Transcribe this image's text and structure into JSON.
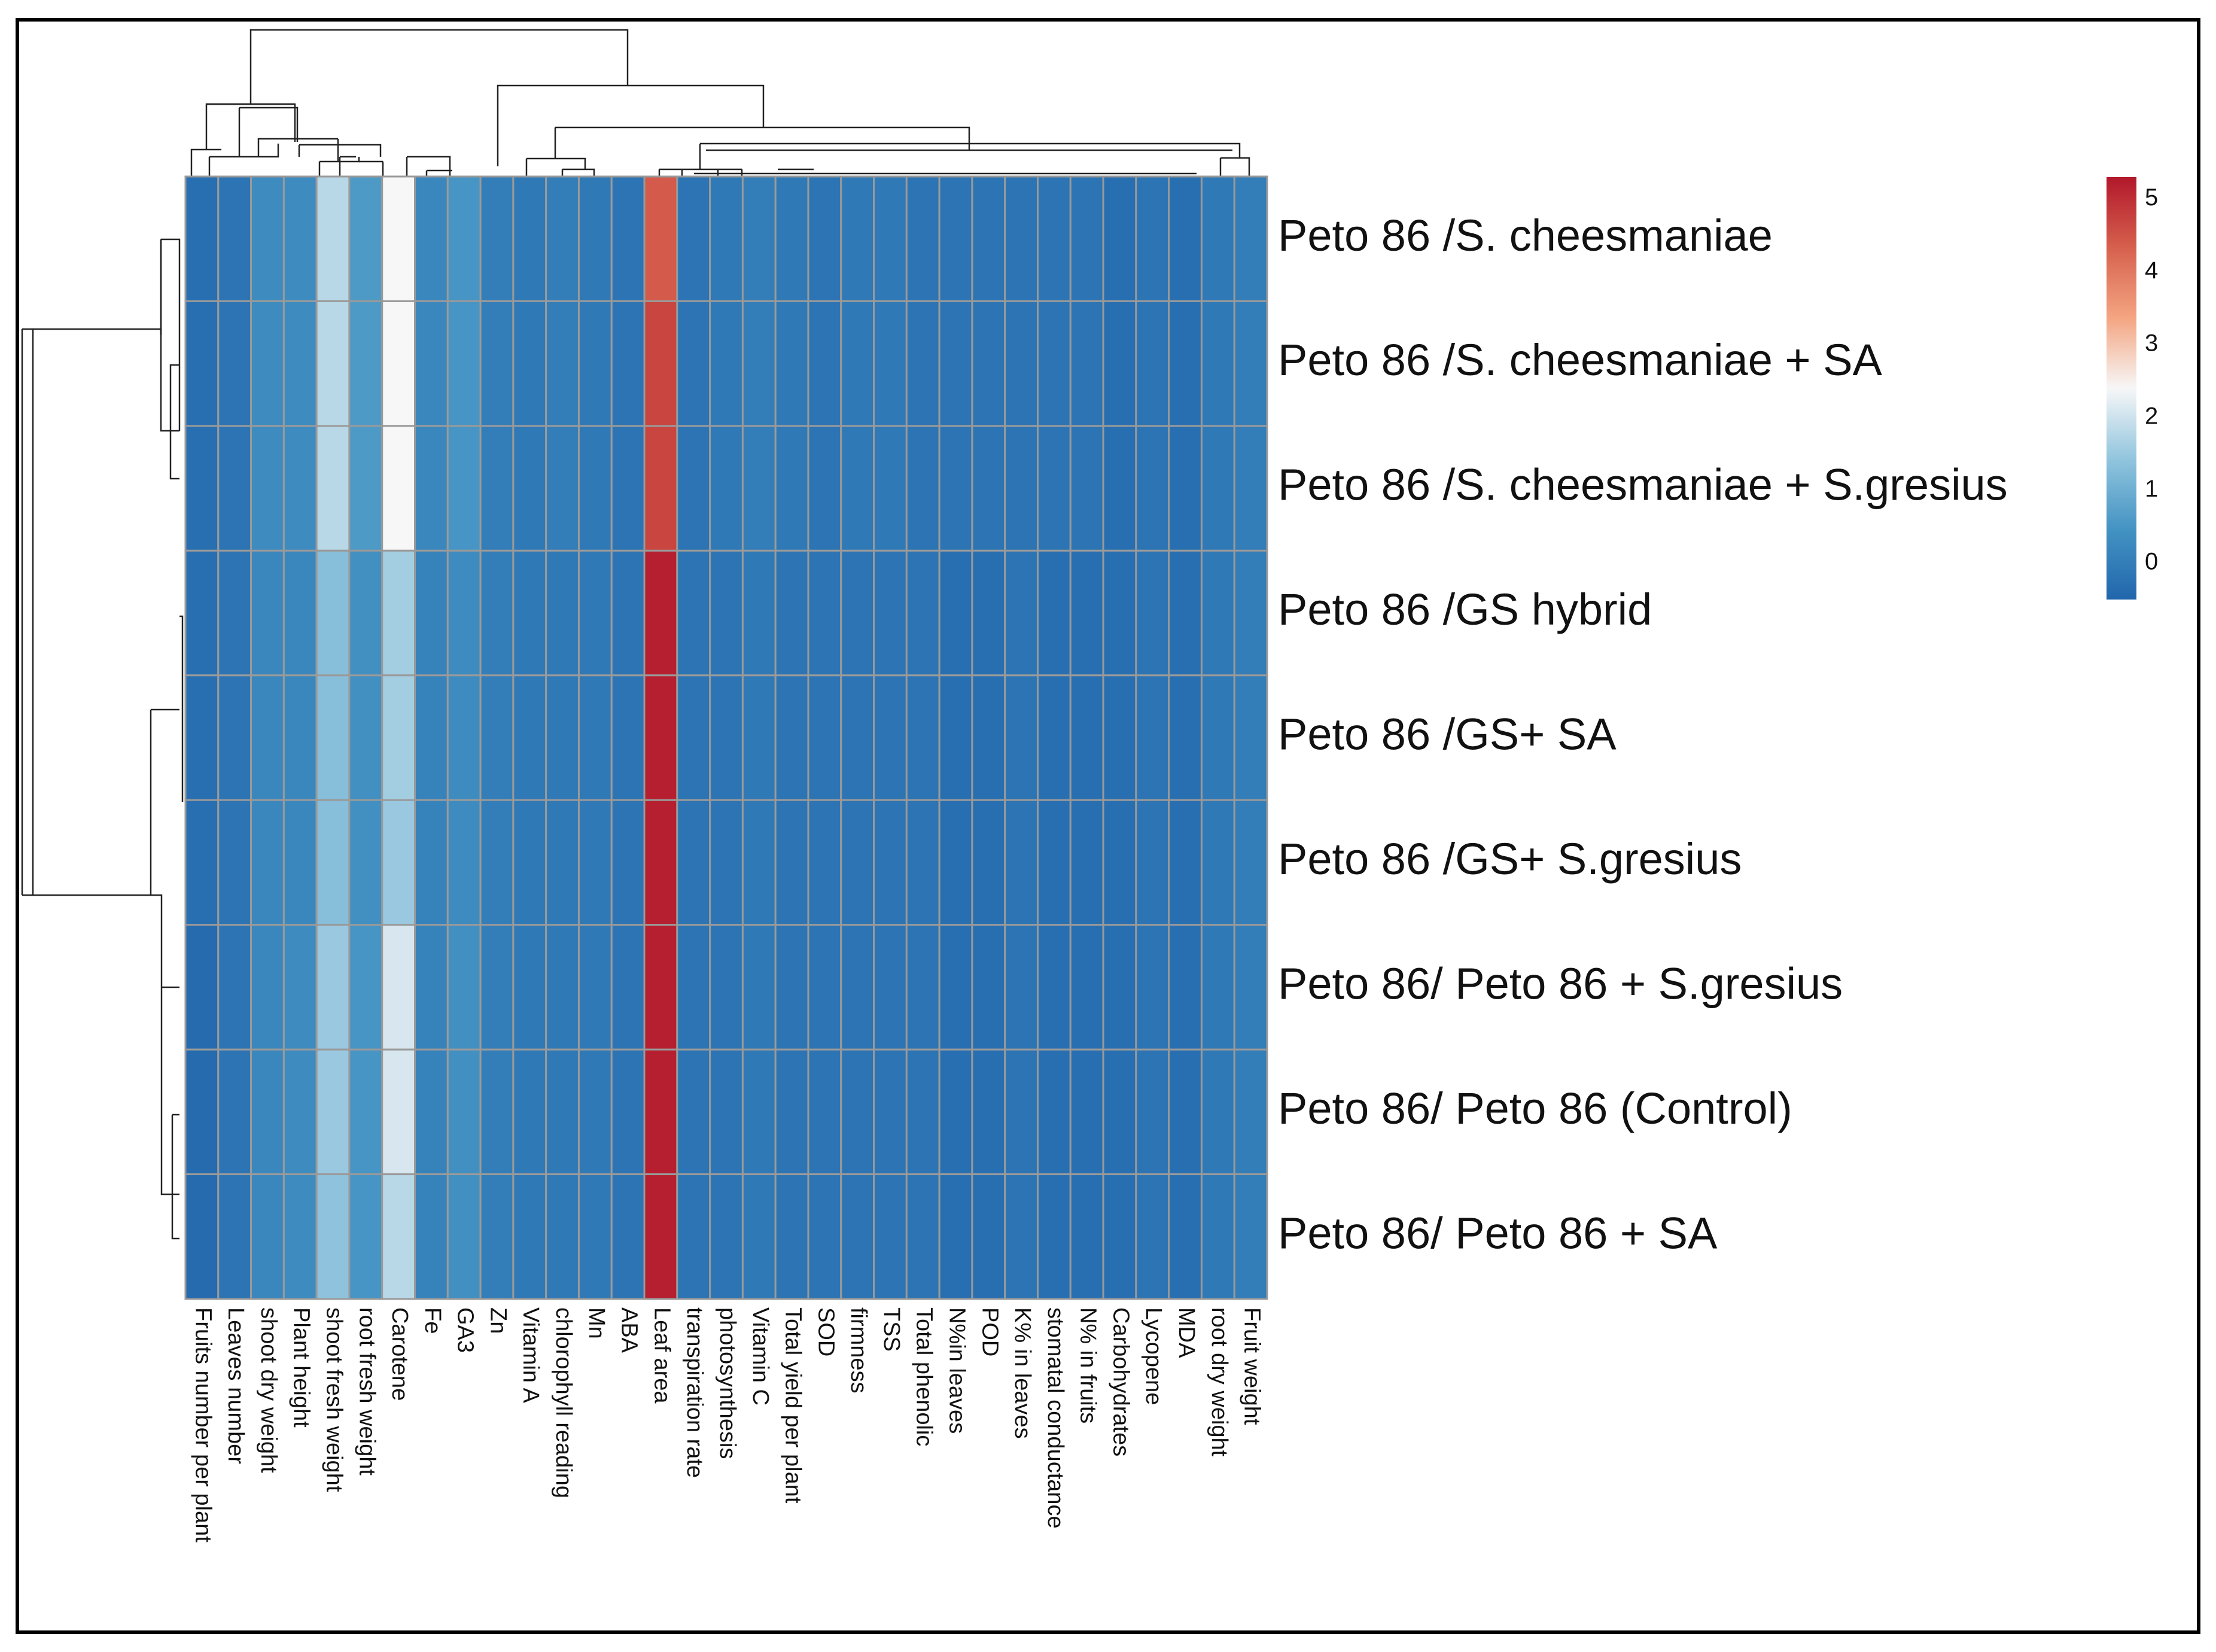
{
  "chart_data": {
    "type": "heatmap",
    "title": "",
    "rows": [
      "Peto 86 /S. cheesmaniae",
      "Peto 86 /S. cheesmaniae + SA",
      "Peto 86 /S. cheesmaniae + S.gresius",
      "Peto 86 /GS hybrid",
      "Peto 86 /GS+  SA",
      "Peto 86 /GS+ S.gresius",
      "Peto 86/ Peto 86 + S.gresius",
      "Peto 86/ Peto 86 (Control)",
      "Peto 86/ Peto 86  +  SA"
    ],
    "columns": [
      "Fruits number per plant",
      "Leaves number",
      "shoot dry weight",
      "Plant height",
      "shoot fresh weight",
      "root fresh weight",
      "Carotene",
      "Fe",
      "GA3",
      "Zn",
      "Vitamin A",
      "chlorophyll reading",
      "Mn",
      "ABA",
      "Leaf area",
      "transpiration rate",
      "photosynthesis",
      "Vitamin C",
      "Total yield per plant",
      "SOD",
      "firmness",
      "TSS",
      "Total phenolic",
      "N%in leaves",
      "POD",
      "K% in leaves",
      "stomatal conductance",
      "N% in fruits",
      "Carbohydrates",
      "Lycopene",
      "MDA",
      "root dry weight",
      "Fruit weight"
    ],
    "values": [
      [
        -0.3,
        -0.2,
        0.3,
        0.3,
        1.8,
        0.6,
        2.4,
        0.2,
        0.5,
        0.0,
        -0.1,
        0.0,
        -0.1,
        -0.2,
        4.4,
        -0.2,
        -0.1,
        0.0,
        -0.1,
        -0.2,
        -0.1,
        -0.1,
        -0.2,
        -0.2,
        -0.2,
        -0.2,
        -0.2,
        -0.2,
        -0.3,
        -0.2,
        -0.3,
        -0.1,
        0.0
      ],
      [
        -0.3,
        -0.2,
        0.3,
        0.3,
        1.8,
        0.6,
        2.4,
        0.2,
        0.5,
        0.0,
        -0.1,
        0.0,
        -0.1,
        -0.2,
        4.7,
        -0.2,
        -0.1,
        0.0,
        -0.1,
        -0.2,
        -0.1,
        -0.1,
        -0.2,
        -0.2,
        -0.2,
        -0.2,
        -0.2,
        -0.2,
        -0.3,
        -0.2,
        -0.3,
        -0.1,
        0.0
      ],
      [
        -0.3,
        -0.2,
        0.3,
        0.3,
        1.8,
        0.6,
        2.4,
        0.2,
        0.5,
        0.0,
        -0.1,
        0.0,
        -0.1,
        -0.2,
        4.7,
        -0.2,
        -0.1,
        0.0,
        -0.1,
        -0.2,
        -0.1,
        -0.1,
        -0.2,
        -0.2,
        -0.2,
        -0.2,
        -0.2,
        -0.2,
        -0.3,
        -0.2,
        -0.3,
        -0.1,
        0.0
      ],
      [
        -0.3,
        -0.2,
        0.2,
        0.2,
        1.3,
        0.4,
        1.6,
        0.1,
        0.3,
        0.0,
        -0.1,
        -0.1,
        -0.1,
        -0.2,
        5.2,
        -0.2,
        -0.2,
        -0.1,
        -0.2,
        -0.2,
        -0.2,
        -0.2,
        -0.2,
        -0.3,
        -0.3,
        -0.2,
        -0.3,
        -0.3,
        -0.3,
        -0.2,
        -0.3,
        -0.1,
        0.0
      ],
      [
        -0.3,
        -0.2,
        0.2,
        0.2,
        1.3,
        0.4,
        1.6,
        0.1,
        0.3,
        0.0,
        -0.1,
        -0.1,
        -0.1,
        -0.2,
        5.2,
        -0.2,
        -0.2,
        -0.1,
        -0.2,
        -0.2,
        -0.2,
        -0.2,
        -0.2,
        -0.3,
        -0.3,
        -0.2,
        -0.3,
        -0.3,
        -0.3,
        -0.2,
        -0.3,
        -0.1,
        0.0
      ],
      [
        -0.3,
        -0.2,
        0.2,
        0.2,
        1.3,
        0.4,
        1.5,
        0.1,
        0.3,
        0.0,
        -0.1,
        -0.1,
        -0.1,
        -0.2,
        5.2,
        -0.2,
        -0.2,
        -0.1,
        -0.2,
        -0.2,
        -0.2,
        -0.2,
        -0.2,
        -0.3,
        -0.3,
        -0.2,
        -0.3,
        -0.3,
        -0.3,
        -0.2,
        -0.3,
        -0.1,
        0.0
      ],
      [
        -0.4,
        -0.2,
        0.2,
        0.3,
        1.5,
        0.5,
        2.1,
        0.1,
        0.4,
        0.0,
        -0.1,
        -0.1,
        -0.1,
        -0.2,
        5.2,
        -0.2,
        -0.2,
        -0.1,
        -0.2,
        -0.2,
        -0.2,
        -0.2,
        -0.2,
        -0.3,
        -0.3,
        -0.2,
        -0.3,
        -0.3,
        -0.3,
        -0.2,
        -0.3,
        -0.1,
        0.0
      ],
      [
        -0.4,
        -0.2,
        0.2,
        0.3,
        1.5,
        0.5,
        2.1,
        0.1,
        0.4,
        0.0,
        -0.1,
        -0.1,
        -0.1,
        -0.2,
        5.2,
        -0.2,
        -0.2,
        -0.1,
        -0.2,
        -0.2,
        -0.2,
        -0.2,
        -0.2,
        -0.3,
        -0.3,
        -0.2,
        -0.3,
        -0.3,
        -0.3,
        -0.2,
        -0.3,
        -0.1,
        0.0
      ],
      [
        -0.4,
        -0.2,
        0.2,
        0.3,
        1.4,
        0.5,
        1.8,
        0.1,
        0.4,
        0.0,
        -0.1,
        -0.1,
        -0.1,
        -0.2,
        5.2,
        -0.2,
        -0.2,
        -0.1,
        -0.2,
        -0.2,
        -0.2,
        -0.2,
        -0.2,
        -0.3,
        -0.3,
        -0.2,
        -0.3,
        -0.3,
        -0.3,
        -0.2,
        -0.3,
        -0.1,
        0.0
      ]
    ],
    "color_scale": {
      "range": [
        -0.5,
        5.3
      ],
      "ticks": [
        "0",
        "1",
        "2",
        "3",
        "4",
        "5"
      ],
      "colors": [
        "#2166ac",
        "#4393c3",
        "#92c5de",
        "#f7f7f7",
        "#f4a582",
        "#d6604d",
        "#b2182b"
      ]
    },
    "cell_border_color": "#9a9a9a",
    "column_dendrogram": "top",
    "row_dendrogram": "left",
    "legend_position": "right"
  }
}
